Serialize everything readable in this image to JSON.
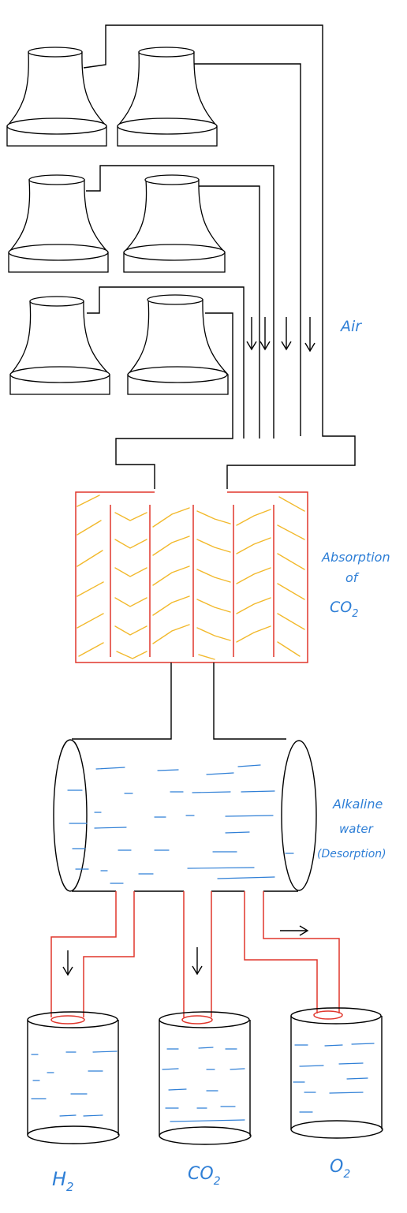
{
  "labels": {
    "air": "Air",
    "absorption_line1": "Absorption",
    "absorption_line2": "of",
    "absorption_line3": "CO",
    "absorption_sub": "2",
    "alkaline_line1": "Alkaline",
    "alkaline_line2": "water",
    "alkaline_line3": "(Desorption)",
    "h2_main": "H",
    "h2_sub": "2",
    "co2_main": "CO",
    "co2_sub": "2",
    "o2_main": "O",
    "o2_sub": "2"
  },
  "colors": {
    "ink": "#000000",
    "label_blue": "#2f7fd6",
    "absorber_red": "#e0362c",
    "packing_yellow": "#f2b92c",
    "water_blue": "#2f7fd6"
  },
  "icons": [
    "cooling-tower-icon",
    "down-arrow-icon",
    "right-arrow-icon",
    "water-tank-icon"
  ]
}
